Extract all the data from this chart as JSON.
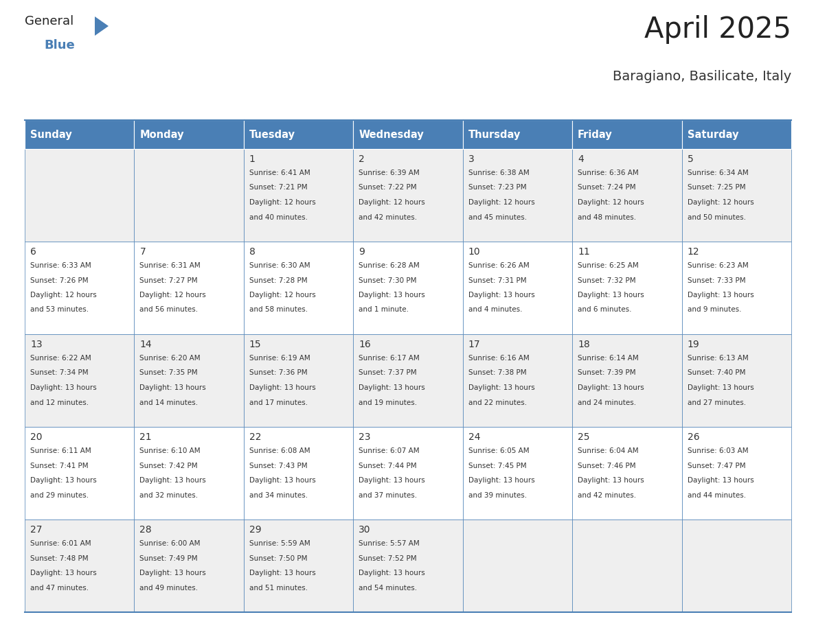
{
  "title": "April 2025",
  "subtitle": "Baragiano, Basilicate, Italy",
  "header_bg_color": "#4a7fb5",
  "header_text_color": "#ffffff",
  "cell_bg_odd": "#efefef",
  "cell_bg_even": "#ffffff",
  "text_color_dark": "#333333",
  "border_color": "#4a7fb5",
  "days_of_week": [
    "Sunday",
    "Monday",
    "Tuesday",
    "Wednesday",
    "Thursday",
    "Friday",
    "Saturday"
  ],
  "logo_general_color": "#222222",
  "logo_blue_color": "#4a7fb5",
  "title_color": "#222222",
  "subtitle_color": "#333333",
  "weeks": [
    [
      {
        "day": "",
        "sunrise": "",
        "sunset": "",
        "daylight": ""
      },
      {
        "day": "",
        "sunrise": "",
        "sunset": "",
        "daylight": ""
      },
      {
        "day": "1",
        "sunrise": "6:41 AM",
        "sunset": "7:21 PM",
        "dl1": "12 hours",
        "dl2": "and 40 minutes."
      },
      {
        "day": "2",
        "sunrise": "6:39 AM",
        "sunset": "7:22 PM",
        "dl1": "12 hours",
        "dl2": "and 42 minutes."
      },
      {
        "day": "3",
        "sunrise": "6:38 AM",
        "sunset": "7:23 PM",
        "dl1": "12 hours",
        "dl2": "and 45 minutes."
      },
      {
        "day": "4",
        "sunrise": "6:36 AM",
        "sunset": "7:24 PM",
        "dl1": "12 hours",
        "dl2": "and 48 minutes."
      },
      {
        "day": "5",
        "sunrise": "6:34 AM",
        "sunset": "7:25 PM",
        "dl1": "12 hours",
        "dl2": "and 50 minutes."
      }
    ],
    [
      {
        "day": "6",
        "sunrise": "6:33 AM",
        "sunset": "7:26 PM",
        "dl1": "12 hours",
        "dl2": "and 53 minutes."
      },
      {
        "day": "7",
        "sunrise": "6:31 AM",
        "sunset": "7:27 PM",
        "dl1": "12 hours",
        "dl2": "and 56 minutes."
      },
      {
        "day": "8",
        "sunrise": "6:30 AM",
        "sunset": "7:28 PM",
        "dl1": "12 hours",
        "dl2": "and 58 minutes."
      },
      {
        "day": "9",
        "sunrise": "6:28 AM",
        "sunset": "7:30 PM",
        "dl1": "13 hours",
        "dl2": "and 1 minute."
      },
      {
        "day": "10",
        "sunrise": "6:26 AM",
        "sunset": "7:31 PM",
        "dl1": "13 hours",
        "dl2": "and 4 minutes."
      },
      {
        "day": "11",
        "sunrise": "6:25 AM",
        "sunset": "7:32 PM",
        "dl1": "13 hours",
        "dl2": "and 6 minutes."
      },
      {
        "day": "12",
        "sunrise": "6:23 AM",
        "sunset": "7:33 PM",
        "dl1": "13 hours",
        "dl2": "and 9 minutes."
      }
    ],
    [
      {
        "day": "13",
        "sunrise": "6:22 AM",
        "sunset": "7:34 PM",
        "dl1": "13 hours",
        "dl2": "and 12 minutes."
      },
      {
        "day": "14",
        "sunrise": "6:20 AM",
        "sunset": "7:35 PM",
        "dl1": "13 hours",
        "dl2": "and 14 minutes."
      },
      {
        "day": "15",
        "sunrise": "6:19 AM",
        "sunset": "7:36 PM",
        "dl1": "13 hours",
        "dl2": "and 17 minutes."
      },
      {
        "day": "16",
        "sunrise": "6:17 AM",
        "sunset": "7:37 PM",
        "dl1": "13 hours",
        "dl2": "and 19 minutes."
      },
      {
        "day": "17",
        "sunrise": "6:16 AM",
        "sunset": "7:38 PM",
        "dl1": "13 hours",
        "dl2": "and 22 minutes."
      },
      {
        "day": "18",
        "sunrise": "6:14 AM",
        "sunset": "7:39 PM",
        "dl1": "13 hours",
        "dl2": "and 24 minutes."
      },
      {
        "day": "19",
        "sunrise": "6:13 AM",
        "sunset": "7:40 PM",
        "dl1": "13 hours",
        "dl2": "and 27 minutes."
      }
    ],
    [
      {
        "day": "20",
        "sunrise": "6:11 AM",
        "sunset": "7:41 PM",
        "dl1": "13 hours",
        "dl2": "and 29 minutes."
      },
      {
        "day": "21",
        "sunrise": "6:10 AM",
        "sunset": "7:42 PM",
        "dl1": "13 hours",
        "dl2": "and 32 minutes."
      },
      {
        "day": "22",
        "sunrise": "6:08 AM",
        "sunset": "7:43 PM",
        "dl1": "13 hours",
        "dl2": "and 34 minutes."
      },
      {
        "day": "23",
        "sunrise": "6:07 AM",
        "sunset": "7:44 PM",
        "dl1": "13 hours",
        "dl2": "and 37 minutes."
      },
      {
        "day": "24",
        "sunrise": "6:05 AM",
        "sunset": "7:45 PM",
        "dl1": "13 hours",
        "dl2": "and 39 minutes."
      },
      {
        "day": "25",
        "sunrise": "6:04 AM",
        "sunset": "7:46 PM",
        "dl1": "13 hours",
        "dl2": "and 42 minutes."
      },
      {
        "day": "26",
        "sunrise": "6:03 AM",
        "sunset": "7:47 PM",
        "dl1": "13 hours",
        "dl2": "and 44 minutes."
      }
    ],
    [
      {
        "day": "27",
        "sunrise": "6:01 AM",
        "sunset": "7:48 PM",
        "dl1": "13 hours",
        "dl2": "and 47 minutes."
      },
      {
        "day": "28",
        "sunrise": "6:00 AM",
        "sunset": "7:49 PM",
        "dl1": "13 hours",
        "dl2": "and 49 minutes."
      },
      {
        "day": "29",
        "sunrise": "5:59 AM",
        "sunset": "7:50 PM",
        "dl1": "13 hours",
        "dl2": "and 51 minutes."
      },
      {
        "day": "30",
        "sunrise": "5:57 AM",
        "sunset": "7:52 PM",
        "dl1": "13 hours",
        "dl2": "and 54 minutes."
      },
      {
        "day": "",
        "sunrise": "",
        "sunset": "",
        "dl1": "",
        "dl2": ""
      },
      {
        "day": "",
        "sunrise": "",
        "sunset": "",
        "dl1": "",
        "dl2": ""
      },
      {
        "day": "",
        "sunrise": "",
        "sunset": "",
        "dl1": "",
        "dl2": ""
      }
    ]
  ]
}
